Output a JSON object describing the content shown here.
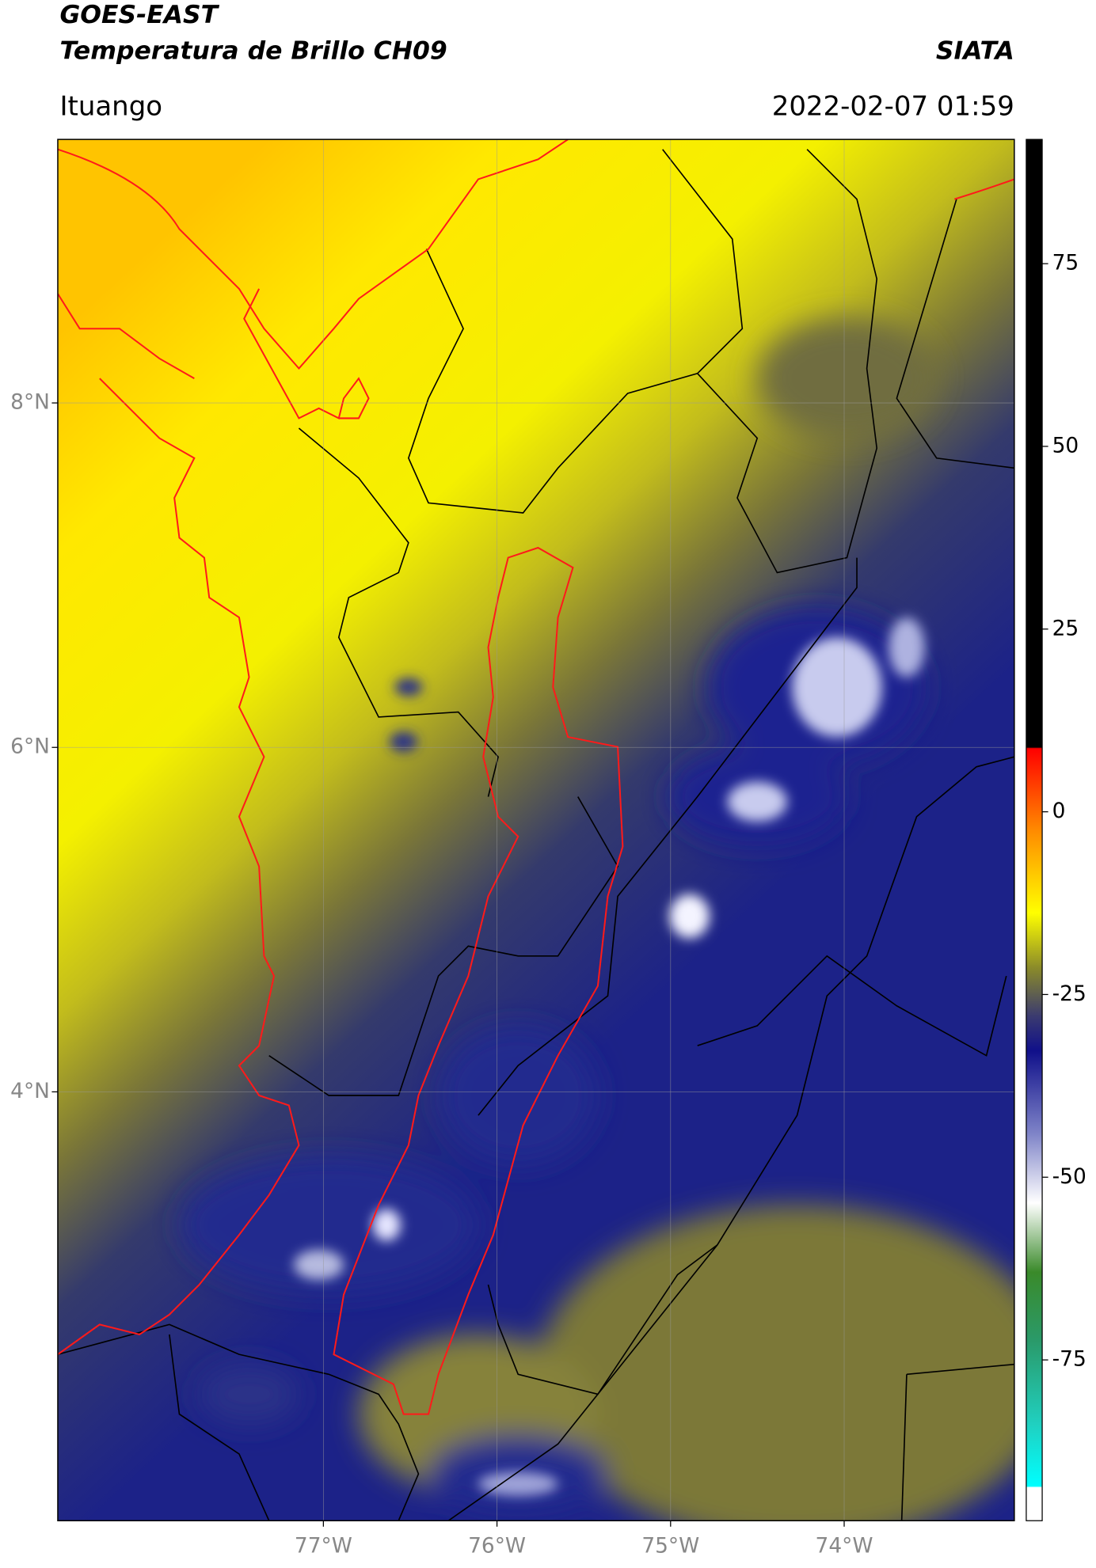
{
  "header": {
    "title": "GOES-EAST",
    "subtitle": "Temperatura de Brillo CH09",
    "source": "SIATA",
    "region": "Ituango",
    "datetime": "2022-02-07 01:59"
  },
  "map": {
    "latlim": [
      1.51,
      9.53
    ],
    "lonlim": [
      -78.53,
      -73.02
    ],
    "latticks": [
      {
        "value": 8,
        "label": "8°N"
      },
      {
        "value": 6,
        "label": "6°N"
      },
      {
        "value": 4,
        "label": "4°N"
      }
    ],
    "lonticks": [
      {
        "value": -77,
        "label": "77°W"
      },
      {
        "value": -76,
        "label": "76°W"
      },
      {
        "value": -75,
        "label": "75°W"
      },
      {
        "value": -74,
        "label": "74°W"
      }
    ],
    "grid": true
  },
  "colorbar": {
    "lim": [
      -97,
      92
    ],
    "ticks": [
      75,
      50,
      25,
      0,
      -25,
      -50,
      -75
    ]
  }
}
